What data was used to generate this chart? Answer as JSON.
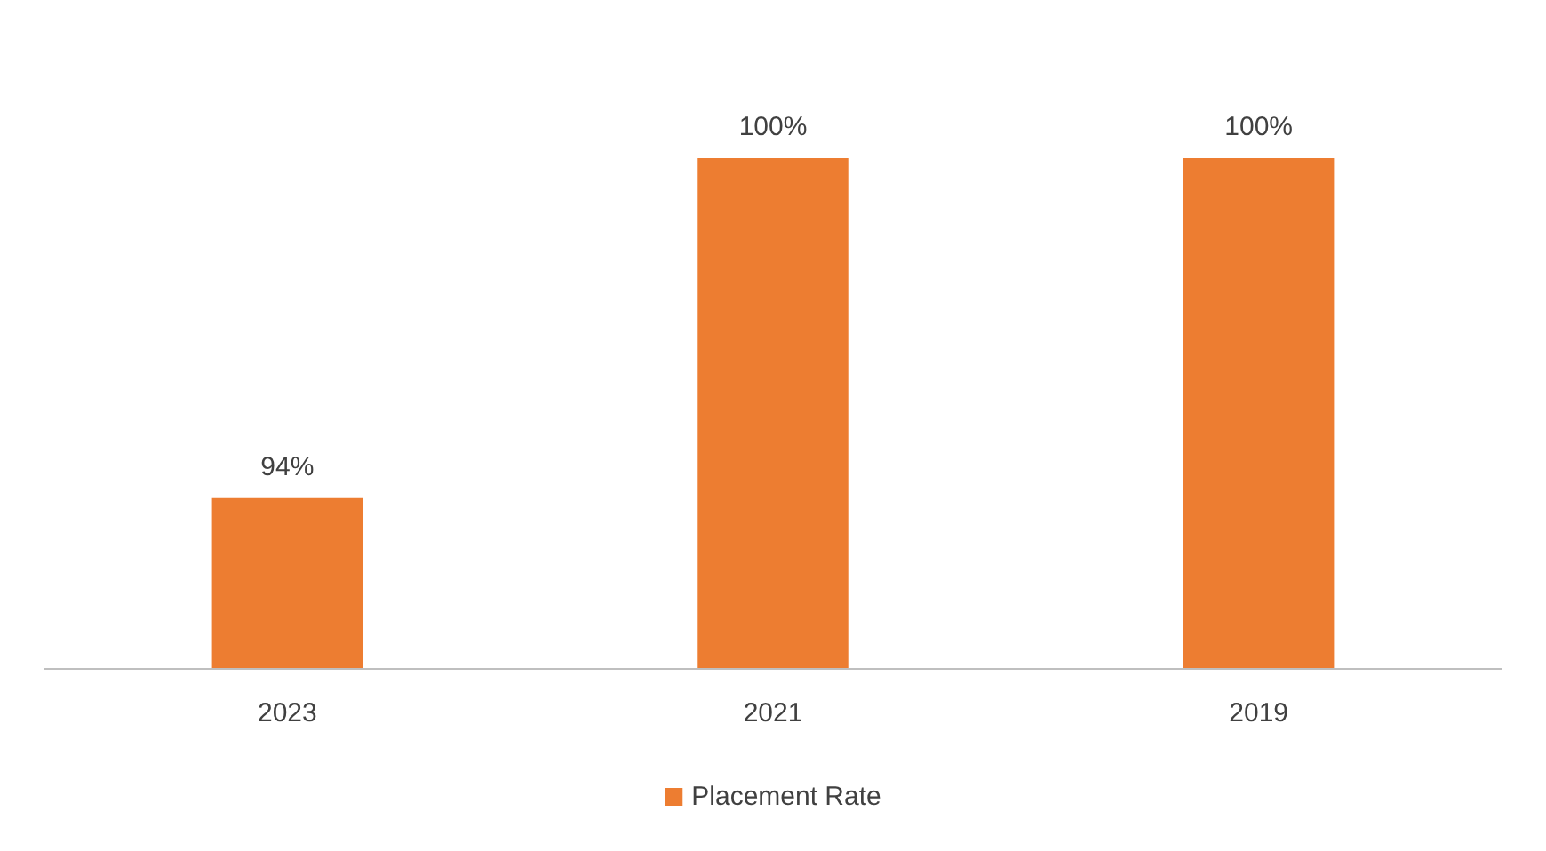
{
  "chart_data": {
    "type": "bar",
    "categories": [
      "2023",
      "2021",
      "2019"
    ],
    "series": [
      {
        "name": "Placement Rate",
        "color": "#ed7d31",
        "values": [
          94,
          100,
          100
        ],
        "value_labels": [
          "94%",
          "100%",
          "100%"
        ]
      }
    ],
    "ylim": [
      91,
      100
    ],
    "legend": "bottom"
  }
}
